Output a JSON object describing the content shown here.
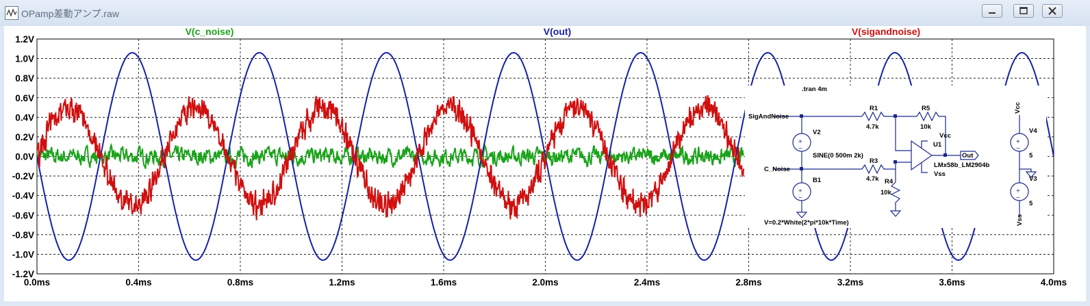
{
  "window": {
    "title": "OPamp差動アンプ.raw",
    "minimize_icon": "minimize-icon",
    "maximize_icon": "maximize-icon",
    "close_icon": "close-icon"
  },
  "chart_data": {
    "type": "line",
    "series": [
      {
        "name": "V(c_noise)",
        "color": "#1aa31a",
        "kind": "noise",
        "amplitude": 0.07
      },
      {
        "name": "V(out)",
        "color": "#1520a8",
        "kind": "sine",
        "amplitude": 1.06,
        "frequency_khz": 2.0,
        "phase": "negative-sine"
      },
      {
        "name": "V(sigandnoise)",
        "color": "#d01010",
        "kind": "sine+noise",
        "amplitude": 0.5,
        "frequency_khz": 2.0,
        "phase": "sine"
      }
    ],
    "xlim": [
      0,
      4.0
    ],
    "ylim": [
      -1.2,
      1.2
    ],
    "x_ticks": [
      "0.0ms",
      "0.4ms",
      "0.8ms",
      "1.2ms",
      "1.6ms",
      "2.0ms",
      "2.4ms",
      "2.8ms",
      "3.2ms",
      "3.6ms",
      "4.0ms"
    ],
    "x_tick_values": [
      0,
      0.4,
      0.8,
      1.2,
      1.6,
      2.0,
      2.4,
      2.8,
      3.2,
      3.6,
      4.0
    ],
    "y_ticks": [
      "1.2V",
      "1.0V",
      "0.8V",
      "0.6V",
      "0.4V",
      "0.2V",
      "0.0V",
      "-0.2V",
      "-0.4V",
      "-0.6V",
      "-0.8V",
      "-1.0V",
      "-1.2V"
    ],
    "y_tick_values": [
      1.2,
      1.0,
      0.8,
      0.6,
      0.4,
      0.2,
      0,
      -0.2,
      -0.4,
      -0.6,
      -0.8,
      -1.0,
      -1.2
    ],
    "grid": true,
    "legend": "top"
  },
  "schematic": {
    "directive": ".tran 4m",
    "labels": {
      "sig_and_noise": "SigAndNoise",
      "c_noise": "C_Noise",
      "v2": "V2",
      "b1": "B1",
      "sine": "SINE(0 500m 2k)",
      "r1": "R1",
      "r1_val": "4.7k",
      "r5": "R5",
      "r5_val": "10k",
      "r3": "R3",
      "r3_val": "4.7k",
      "r4": "R4",
      "r4_val": "10k",
      "vcc_pin": "Vcc",
      "vss_pin": "Vss",
      "u1": "U1",
      "out": "Out",
      "opamp_model": "LMx58b_LM2904b",
      "vcc": "Vcc",
      "v4": "V4",
      "v4_val": "5",
      "v3": "V3",
      "v3_val": "5",
      "vss": "Vss",
      "bv_expr": "V=0.2*White(2*pi*10k*Time)"
    }
  }
}
